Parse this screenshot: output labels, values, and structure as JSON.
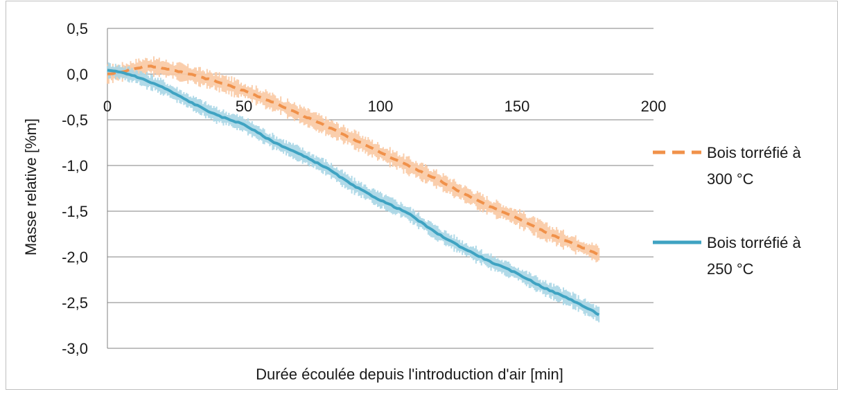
{
  "chart_data": {
    "type": "line",
    "title": "",
    "xlabel": "Durée écoulée depuis l'introduction d'air [min]",
    "ylabel": "Masse relative [%m]",
    "xlim": [
      0,
      200
    ],
    "ylim": [
      -3.0,
      0.5
    ],
    "x_ticks": [
      "0",
      "50",
      "100",
      "150",
      "200"
    ],
    "x_tick_values": [
      0,
      50,
      100,
      150,
      200
    ],
    "y_ticks": [
      "0,5",
      "0,0",
      "-0,5",
      "-1,0",
      "-1,5",
      "-2,0",
      "-2,5",
      "-3,0"
    ],
    "y_tick_values": [
      0.5,
      0.0,
      -0.5,
      -1.0,
      -1.5,
      -2.0,
      -2.5,
      -3.0
    ],
    "grid": "horizontal",
    "legend_position": "right",
    "colors": {
      "orange": "#f0914a",
      "orange_band": "#f9c9a3",
      "blue": "#3fa3c2",
      "blue_band": "#a9d6e5",
      "grid": "#808080"
    },
    "series": [
      {
        "name": "Bois torréfié à 300 °C",
        "legend_lines": [
          "Bois torréfié à",
          "300 °C"
        ],
        "style": "dashed",
        "color": "#f0914a",
        "band_color": "#f9c9a3",
        "band_halfwidth": 0.08,
        "x": [
          0,
          5,
          10,
          15,
          20,
          30,
          40,
          50,
          60,
          70,
          80,
          90,
          100,
          110,
          120,
          130,
          140,
          150,
          160,
          170,
          180
        ],
        "y": [
          0.0,
          0.02,
          0.06,
          0.09,
          0.07,
          0.0,
          -0.08,
          -0.18,
          -0.3,
          -0.43,
          -0.57,
          -0.71,
          -0.86,
          -1.0,
          -1.14,
          -1.3,
          -1.45,
          -1.57,
          -1.72,
          -1.85,
          -1.97
        ]
      },
      {
        "name": "Bois torréfié à 250 °C",
        "legend_lines": [
          "Bois torréfié à",
          "250 °C"
        ],
        "style": "solid",
        "color": "#3fa3c2",
        "band_color": "#a9d6e5",
        "band_halfwidth": 0.07,
        "x": [
          0,
          5,
          10,
          20,
          30,
          40,
          50,
          60,
          70,
          80,
          90,
          100,
          110,
          120,
          130,
          140,
          150,
          160,
          170,
          180
        ],
        "y": [
          0.04,
          0.02,
          -0.02,
          -0.14,
          -0.3,
          -0.45,
          -0.55,
          -0.73,
          -0.87,
          -1.02,
          -1.22,
          -1.38,
          -1.52,
          -1.73,
          -1.9,
          -2.05,
          -2.18,
          -2.34,
          -2.47,
          -2.63
        ]
      }
    ]
  }
}
